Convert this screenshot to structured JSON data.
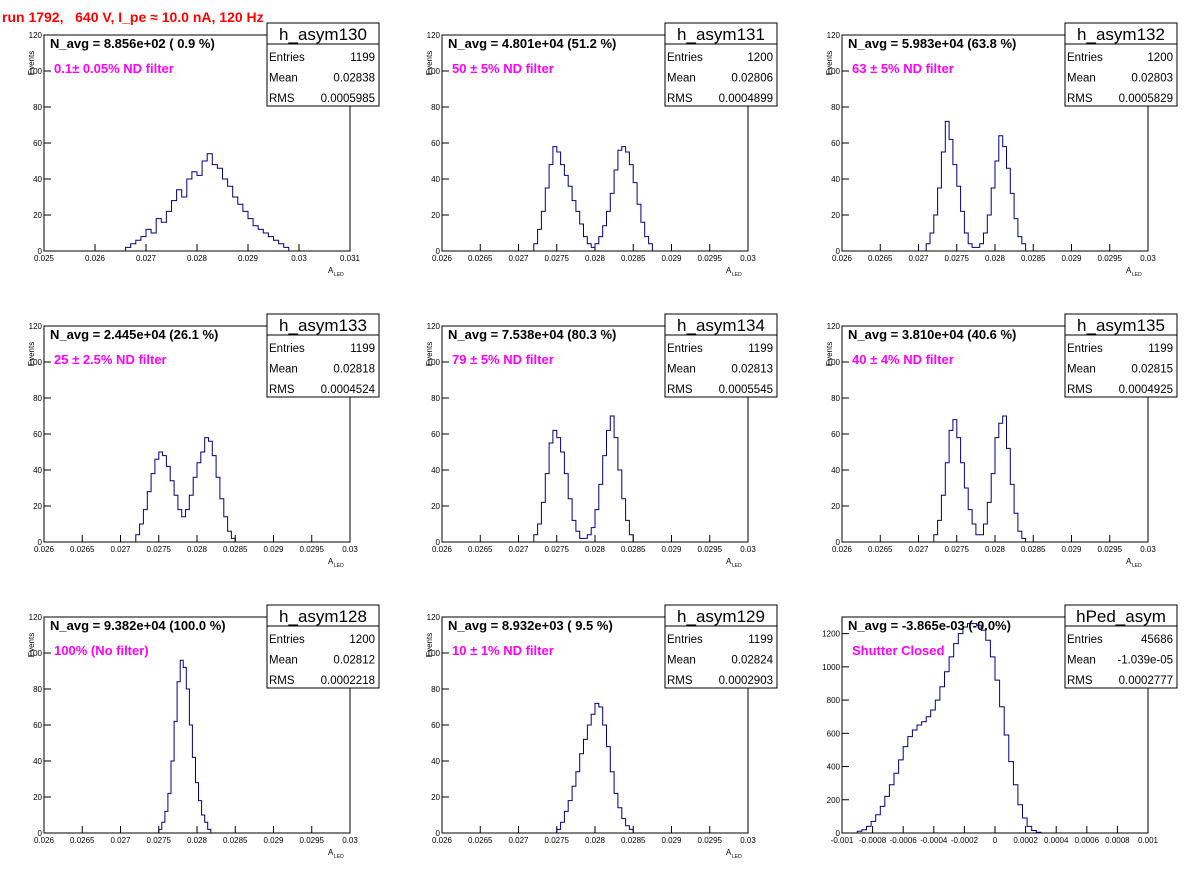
{
  "header": {
    "title": "run 1792,   640 V, I_pe ≈ 10.0 nA, 120 Hz"
  },
  "colors": {
    "histogram_line": "#000080",
    "annotation_magenta": "#ff00ff",
    "title_red": "#ff0000",
    "frame": "#000000",
    "background": "#ffffff"
  },
  "chart_data": [
    {
      "type": "histogram",
      "name": "h_asym130",
      "stats": {
        "entries": "1199",
        "mean": "0.02838",
        "rms": "0.0005985"
      },
      "navg_text": "N_avg = 8.856e+02 ( 0.9 %)",
      "filter_text": "0.1± 0.05% ND filter",
      "xlabel_main": "A",
      "xlabel_sub": "LED",
      "ylabel": "Events",
      "xlim": [
        0.025,
        0.031
      ],
      "ylim": [
        0,
        120
      ],
      "xticks": [
        "0.025",
        "0.026",
        "0.027",
        "0.028",
        "0.029",
        "0.03",
        "0.031"
      ],
      "yticks": [
        "0",
        "20",
        "40",
        "60",
        "80",
        "100",
        "120"
      ],
      "bins": {
        "start": 0.0266,
        "width": 0.0001,
        "counts": [
          2,
          4,
          6,
          8,
          12,
          10,
          18,
          16,
          22,
          28,
          34,
          30,
          40,
          44,
          42,
          50,
          54,
          48,
          46,
          40,
          36,
          30,
          26,
          22,
          18,
          14,
          12,
          10,
          8,
          6,
          4,
          2
        ]
      }
    },
    {
      "type": "histogram",
      "name": "h_asym131",
      "stats": {
        "entries": "1200",
        "mean": "0.02806",
        "rms": "0.0004899"
      },
      "navg_text": "N_avg = 4.801e+04 (51.2 %)",
      "filter_text": "50 ± 5% ND filter",
      "xlabel_main": "A",
      "xlabel_sub": "LED",
      "ylabel": "Events",
      "xlim": [
        0.026,
        0.03
      ],
      "ylim": [
        0,
        120
      ],
      "xticks": [
        "0.026",
        "0.0265",
        "0.027",
        "0.0275",
        "0.028",
        "0.0285",
        "0.029",
        "0.0295",
        "0.03"
      ],
      "yticks": [
        "0",
        "20",
        "40",
        "60",
        "80",
        "100",
        "120"
      ],
      "bins": {
        "start": 0.0272,
        "width": 5e-05,
        "counts": [
          4,
          12,
          22,
          35,
          48,
          58,
          55,
          48,
          42,
          36,
          28,
          22,
          15,
          8,
          4,
          2,
          4,
          8,
          14,
          22,
          32,
          45,
          56,
          58,
          55,
          48,
          38,
          26,
          16,
          8,
          4
        ]
      }
    },
    {
      "type": "histogram",
      "name": "h_asym132",
      "stats": {
        "entries": "1200",
        "mean": "0.02803",
        "rms": "0.0005829"
      },
      "navg_text": "N_avg = 5.983e+04 (63.8 %)",
      "filter_text": "63 ± 5% ND filter",
      "xlabel_main": "A",
      "xlabel_sub": "LED",
      "ylabel": "Events",
      "xlim": [
        0.026,
        0.03
      ],
      "ylim": [
        0,
        120
      ],
      "xticks": [
        "0.026",
        "0.0265",
        "0.027",
        "0.0275",
        "0.028",
        "0.0285",
        "0.029",
        "0.0295",
        "0.03"
      ],
      "yticks": [
        "0",
        "20",
        "40",
        "60",
        "80",
        "100",
        "120"
      ],
      "bins": {
        "start": 0.0271,
        "width": 5e-05,
        "counts": [
          4,
          10,
          20,
          35,
          55,
          72,
          62,
          48,
          36,
          22,
          10,
          4,
          2,
          2,
          4,
          10,
          20,
          35,
          50,
          64,
          58,
          46,
          32,
          18,
          8,
          4
        ]
      }
    },
    {
      "type": "histogram",
      "name": "h_asym133",
      "stats": {
        "entries": "1199",
        "mean": "0.02818",
        "rms": "0.0004524"
      },
      "navg_text": "N_avg = 2.445e+04 (26.1 %)",
      "filter_text": "25 ± 2.5% ND filter",
      "xlabel_main": "A",
      "xlabel_sub": "LED",
      "ylabel": "Events",
      "xlim": [
        0.026,
        0.03
      ],
      "ylim": [
        0,
        120
      ],
      "xticks": [
        "0.026",
        "0.0265",
        "0.027",
        "0.0275",
        "0.028",
        "0.0285",
        "0.029",
        "0.0295",
        "0.03"
      ],
      "yticks": [
        "0",
        "20",
        "40",
        "60",
        "80",
        "100",
        "120"
      ],
      "bins": {
        "start": 0.0272,
        "width": 5e-05,
        "counts": [
          4,
          10,
          18,
          28,
          38,
          46,
          50,
          48,
          42,
          34,
          26,
          18,
          14,
          18,
          26,
          36,
          44,
          50,
          58,
          56,
          48,
          36,
          24,
          14,
          6,
          2
        ]
      }
    },
    {
      "type": "histogram",
      "name": "h_asym134",
      "stats": {
        "entries": "1199",
        "mean": "0.02813",
        "rms": "0.0005545"
      },
      "navg_text": "N_avg = 7.538e+04 (80.3 %)",
      "filter_text": "79 ± 5% ND filter",
      "xlabel_main": "A",
      "xlabel_sub": "LED",
      "ylabel": "Events",
      "xlim": [
        0.026,
        0.03
      ],
      "ylim": [
        0,
        120
      ],
      "xticks": [
        "0.026",
        "0.0265",
        "0.027",
        "0.0275",
        "0.028",
        "0.0285",
        "0.029",
        "0.0295",
        "0.03"
      ],
      "yticks": [
        "0",
        "20",
        "40",
        "60",
        "80",
        "100",
        "120"
      ],
      "bins": {
        "start": 0.0272,
        "width": 5e-05,
        "counts": [
          4,
          10,
          22,
          38,
          55,
          62,
          58,
          50,
          38,
          24,
          12,
          6,
          2,
          2,
          4,
          8,
          18,
          32,
          48,
          62,
          70,
          58,
          40,
          24,
          12,
          4
        ]
      }
    },
    {
      "type": "histogram",
      "name": "h_asym135",
      "stats": {
        "entries": "1199",
        "mean": "0.02815",
        "rms": "0.0004925"
      },
      "navg_text": "N_avg = 3.810e+04 (40.6 %)",
      "filter_text": "40 ± 4% ND filter",
      "xlabel_main": "A",
      "xlabel_sub": "LED",
      "ylabel": "Events",
      "xlim": [
        0.026,
        0.03
      ],
      "ylim": [
        0,
        120
      ],
      "xticks": [
        "0.026",
        "0.0265",
        "0.027",
        "0.0275",
        "0.028",
        "0.0285",
        "0.029",
        "0.0295",
        "0.03"
      ],
      "yticks": [
        "0",
        "20",
        "40",
        "60",
        "80",
        "100",
        "120"
      ],
      "bins": {
        "start": 0.0272,
        "width": 5e-05,
        "counts": [
          4,
          12,
          26,
          44,
          62,
          68,
          58,
          44,
          30,
          18,
          10,
          4,
          4,
          10,
          22,
          38,
          58,
          66,
          70,
          52,
          32,
          16,
          6,
          2
        ]
      }
    },
    {
      "type": "histogram",
      "name": "h_asym128",
      "stats": {
        "entries": "1200",
        "mean": "0.02812",
        "rms": "0.0002218"
      },
      "navg_text": "N_avg = 9.382e+04 (100.0 %)",
      "filter_text": "100% (No filter)",
      "xlabel_main": "A",
      "xlabel_sub": "LED",
      "ylabel": "Events",
      "xlim": [
        0.026,
        0.03
      ],
      "ylim": [
        0,
        120
      ],
      "xticks": [
        "0.026",
        "0.0265",
        "0.027",
        "0.0275",
        "0.028",
        "0.0285",
        "0.029",
        "0.0295",
        "0.03"
      ],
      "yticks": [
        "0",
        "20",
        "40",
        "60",
        "80",
        "100",
        "120"
      ],
      "bins": {
        "start": 0.0275,
        "width": 4e-05,
        "counts": [
          2,
          6,
          12,
          22,
          40,
          62,
          84,
          96,
          92,
          80,
          60,
          42,
          28,
          18,
          10,
          6,
          2
        ]
      }
    },
    {
      "type": "histogram",
      "name": "h_asym129",
      "stats": {
        "entries": "1199",
        "mean": "0.02824",
        "rms": "0.0002903"
      },
      "navg_text": "N_avg = 8.932e+03 ( 9.5 %)",
      "filter_text": "10 ± 1% ND filter",
      "xlabel_main": "A",
      "xlabel_sub": "LED",
      "ylabel": "Events",
      "xlim": [
        0.026,
        0.03
      ],
      "ylim": [
        0,
        120
      ],
      "xticks": [
        "0.026",
        "0.0265",
        "0.027",
        "0.0275",
        "0.028",
        "0.0285",
        "0.029",
        "0.0295",
        "0.03"
      ],
      "yticks": [
        "0",
        "20",
        "40",
        "60",
        "80",
        "100",
        "120"
      ],
      "bins": {
        "start": 0.0275,
        "width": 5e-05,
        "counts": [
          2,
          6,
          12,
          18,
          26,
          34,
          44,
          52,
          60,
          66,
          72,
          70,
          60,
          48,
          34,
          22,
          14,
          8,
          4,
          2
        ]
      }
    },
    {
      "type": "histogram",
      "name": "hPed_asym",
      "stats": {
        "entries": "45686",
        "mean": "-1.039e-05",
        "rms": "0.0002777"
      },
      "navg_text": "N_avg = -3.865e-03 (-0.0%)",
      "filter_text": "Shutter Closed",
      "xlabel_main": "",
      "xlabel_sub": "",
      "ylabel": "",
      "xlim": [
        -0.001,
        0.001
      ],
      "ylim": [
        0,
        1300
      ],
      "xticks": [
        "-0.001",
        "-0.0008",
        "-0.0006",
        "-0.0004",
        "-0.0002",
        "0",
        "0.0002",
        "0.0004",
        "0.0006",
        "0.0008",
        "0.001"
      ],
      "yticks": [
        "0",
        "200",
        "400",
        "600",
        "800",
        "1000",
        "1200"
      ],
      "bins": {
        "start": -0.0009,
        "width": 3e-05,
        "counts": [
          10,
          20,
          40,
          70,
          110,
          160,
          220,
          290,
          360,
          440,
          520,
          580,
          620,
          650,
          670,
          700,
          740,
          800,
          880,
          970,
          1060,
          1140,
          1200,
          1240,
          1260,
          1260,
          1250,
          1220,
          1160,
          1060,
          920,
          760,
          590,
          430,
          290,
          170,
          90,
          40,
          15,
          5
        ]
      }
    }
  ]
}
